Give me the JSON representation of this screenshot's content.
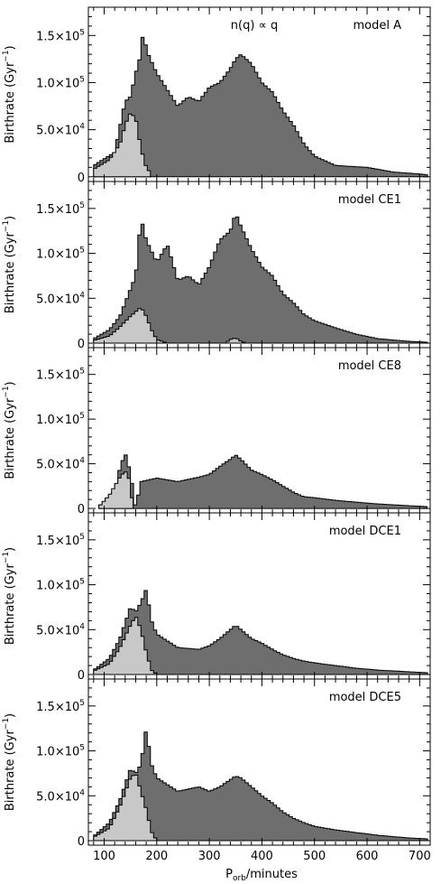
{
  "figure": {
    "xlabel_main": "P",
    "xlabel_sub": "orb",
    "xlabel_rest": "/minutes",
    "x_tick_labels": [
      "100",
      "200",
      "300",
      "400",
      "500",
      "600",
      "700"
    ],
    "xlim": [
      70,
      720
    ],
    "ylim": [
      -5000,
      180000
    ],
    "ylabel_text": "Birthrate (Gyr",
    "ylabel_exp": "−1",
    "ylabel_close": ")",
    "y_ticks": [
      {
        "value": 0,
        "mantissa": "0",
        "exp": ""
      },
      {
        "value": 50000,
        "mantissa": "5.0×10",
        "exp": "4"
      },
      {
        "value": 100000,
        "mantissa": "1.0×10",
        "exp": "5"
      },
      {
        "value": 150000,
        "mantissa": "1.5×10",
        "exp": "5"
      }
    ]
  },
  "chart_data": [
    {
      "type": "area",
      "panel": "model A",
      "annotation": "n(q) ∝ q",
      "label": "model A",
      "total": [
        [
          80,
          12000
        ],
        [
          120,
          26000
        ],
        [
          140,
          80000
        ],
        [
          150,
          85000
        ],
        [
          160,
          110000
        ],
        [
          170,
          130000
        ],
        [
          175,
          160000
        ],
        [
          180,
          135000
        ],
        [
          200,
          110000
        ],
        [
          240,
          75000
        ],
        [
          260,
          85000
        ],
        [
          280,
          80000
        ],
        [
          300,
          95000
        ],
        [
          320,
          100000
        ],
        [
          340,
          115000
        ],
        [
          350,
          125000
        ],
        [
          360,
          130000
        ],
        [
          380,
          120000
        ],
        [
          400,
          100000
        ],
        [
          420,
          90000
        ],
        [
          440,
          70000
        ],
        [
          460,
          55000
        ],
        [
          480,
          35000
        ],
        [
          500,
          22000
        ],
        [
          540,
          12000
        ],
        [
          600,
          10000
        ],
        [
          650,
          5000
        ],
        [
          700,
          3000
        ],
        [
          715,
          2000
        ]
      ],
      "light": [
        [
          80,
          8000
        ],
        [
          110,
          18000
        ],
        [
          130,
          35000
        ],
        [
          140,
          55000
        ],
        [
          150,
          68000
        ],
        [
          160,
          62000
        ],
        [
          170,
          30000
        ],
        [
          180,
          10000
        ],
        [
          190,
          3000
        ]
      ]
    },
    {
      "type": "area",
      "panel": "model CE1",
      "annotation": "",
      "label": "model CE1",
      "total": [
        [
          80,
          5000
        ],
        [
          110,
          15000
        ],
        [
          130,
          30000
        ],
        [
          140,
          45000
        ],
        [
          160,
          75000
        ],
        [
          170,
          140000
        ],
        [
          180,
          115000
        ],
        [
          200,
          90000
        ],
        [
          220,
          110000
        ],
        [
          240,
          70000
        ],
        [
          260,
          75000
        ],
        [
          280,
          65000
        ],
        [
          300,
          85000
        ],
        [
          320,
          115000
        ],
        [
          340,
          125000
        ],
        [
          350,
          145000
        ],
        [
          360,
          130000
        ],
        [
          380,
          105000
        ],
        [
          400,
          85000
        ],
        [
          420,
          75000
        ],
        [
          440,
          55000
        ],
        [
          460,
          45000
        ],
        [
          480,
          32000
        ],
        [
          500,
          25000
        ],
        [
          540,
          17000
        ],
        [
          580,
          10000
        ],
        [
          620,
          5000
        ],
        [
          680,
          2000
        ],
        [
          715,
          1000
        ]
      ],
      "light": [
        [
          80,
          3000
        ],
        [
          110,
          8000
        ],
        [
          130,
          18000
        ],
        [
          150,
          30000
        ],
        [
          170,
          40000
        ],
        [
          180,
          30000
        ],
        [
          190,
          15000
        ],
        [
          200,
          4000
        ],
        [
          220,
          0
        ],
        [
          330,
          0
        ],
        [
          340,
          4000
        ],
        [
          350,
          6000
        ],
        [
          360,
          2000
        ],
        [
          370,
          0
        ]
      ]
    },
    {
      "type": "area",
      "panel": "model CE8",
      "annotation": "",
      "label": "model CE8",
      "total": [
        [
          90,
          2000
        ],
        [
          120,
          20000
        ],
        [
          130,
          45000
        ],
        [
          140,
          62000
        ],
        [
          150,
          40000
        ],
        [
          160,
          0
        ],
        [
          170,
          30000
        ],
        [
          200,
          34000
        ],
        [
          240,
          30000
        ],
        [
          280,
          35000
        ],
        [
          300,
          38000
        ],
        [
          320,
          47000
        ],
        [
          340,
          55000
        ],
        [
          350,
          60000
        ],
        [
          360,
          55000
        ],
        [
          380,
          43000
        ],
        [
          400,
          38000
        ],
        [
          420,
          32000
        ],
        [
          440,
          25000
        ],
        [
          460,
          18000
        ],
        [
          480,
          13000
        ],
        [
          500,
          12000
        ],
        [
          540,
          9000
        ],
        [
          580,
          7000
        ],
        [
          620,
          5000
        ],
        [
          680,
          3000
        ],
        [
          715,
          2000
        ]
      ],
      "light": [
        [
          90,
          2000
        ],
        [
          110,
          15000
        ],
        [
          130,
          35000
        ],
        [
          140,
          42000
        ],
        [
          150,
          30000
        ],
        [
          155,
          0
        ]
      ]
    },
    {
      "type": "area",
      "panel": "model DCE1",
      "annotation": "",
      "label": "model DCE1",
      "total": [
        [
          80,
          5000
        ],
        [
          110,
          18000
        ],
        [
          130,
          40000
        ],
        [
          150,
          75000
        ],
        [
          160,
          70000
        ],
        [
          170,
          80000
        ],
        [
          180,
          95000
        ],
        [
          190,
          60000
        ],
        [
          200,
          45000
        ],
        [
          240,
          30000
        ],
        [
          280,
          28000
        ],
        [
          300,
          32000
        ],
        [
          320,
          40000
        ],
        [
          340,
          50000
        ],
        [
          350,
          55000
        ],
        [
          360,
          50000
        ],
        [
          380,
          40000
        ],
        [
          400,
          35000
        ],
        [
          420,
          28000
        ],
        [
          440,
          22000
        ],
        [
          460,
          18000
        ],
        [
          480,
          15000
        ],
        [
          500,
          13000
        ],
        [
          540,
          10000
        ],
        [
          580,
          7000
        ],
        [
          620,
          5000
        ],
        [
          680,
          3000
        ],
        [
          715,
          2000
        ]
      ],
      "light": [
        [
          80,
          4000
        ],
        [
          110,
          12000
        ],
        [
          130,
          30000
        ],
        [
          150,
          55000
        ],
        [
          160,
          65000
        ],
        [
          170,
          50000
        ],
        [
          180,
          25000
        ],
        [
          190,
          5000
        ],
        [
          200,
          0
        ]
      ]
    },
    {
      "type": "area",
      "panel": "model DCE5",
      "annotation": "",
      "label": "model DCE5",
      "total": [
        [
          80,
          5000
        ],
        [
          110,
          20000
        ],
        [
          130,
          45000
        ],
        [
          150,
          80000
        ],
        [
          160,
          75000
        ],
        [
          170,
          85000
        ],
        [
          180,
          125000
        ],
        [
          190,
          85000
        ],
        [
          200,
          70000
        ],
        [
          240,
          55000
        ],
        [
          280,
          60000
        ],
        [
          300,
          55000
        ],
        [
          320,
          60000
        ],
        [
          340,
          68000
        ],
        [
          350,
          72000
        ],
        [
          360,
          70000
        ],
        [
          380,
          60000
        ],
        [
          400,
          50000
        ],
        [
          420,
          42000
        ],
        [
          440,
          32000
        ],
        [
          460,
          25000
        ],
        [
          480,
          20000
        ],
        [
          500,
          16000
        ],
        [
          540,
          12000
        ],
        [
          580,
          9000
        ],
        [
          620,
          6000
        ],
        [
          680,
          3000
        ],
        [
          715,
          2000
        ]
      ],
      "light": [
        [
          80,
          4000
        ],
        [
          110,
          14000
        ],
        [
          130,
          38000
        ],
        [
          150,
          70000
        ],
        [
          160,
          75000
        ],
        [
          170,
          55000
        ],
        [
          180,
          35000
        ],
        [
          190,
          10000
        ],
        [
          200,
          0
        ]
      ]
    }
  ]
}
